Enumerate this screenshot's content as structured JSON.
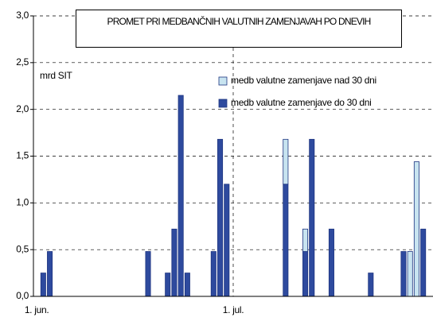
{
  "chart_data": {
    "type": "stacked_bar",
    "title": "PROMET PRI MEDBANČNIH VALUTNIH ZAMENJAVAH PO DNEVIH",
    "ylabel": "mrd SIT",
    "categories": [
      "1. jun.",
      null,
      null,
      null,
      null,
      null,
      null,
      null,
      null,
      null,
      null,
      null,
      null,
      null,
      null,
      null,
      null,
      null,
      null,
      null,
      null,
      null,
      null,
      null,
      null,
      null,
      null,
      null,
      null,
      null,
      "1. jul.",
      null,
      null,
      null,
      null,
      null,
      null,
      null,
      null,
      null,
      null,
      null,
      null,
      null,
      null,
      null,
      null,
      null,
      null,
      null,
      null,
      null,
      null,
      null,
      null,
      null,
      null,
      null,
      null,
      null,
      null
    ],
    "series": [
      {
        "name": "medb valutne zamenjave do 30 dni",
        "color": "#2e4a9e",
        "values": [
          null,
          0.25,
          0.48,
          null,
          null,
          null,
          null,
          null,
          null,
          null,
          null,
          null,
          null,
          null,
          null,
          null,
          null,
          0.48,
          null,
          null,
          0.25,
          0.72,
          2.15,
          0.25,
          null,
          null,
          null,
          0.48,
          1.68,
          1.2,
          null,
          null,
          null,
          null,
          null,
          null,
          null,
          null,
          1.2,
          null,
          null,
          0.48,
          1.68,
          null,
          null,
          0.72,
          null,
          null,
          null,
          null,
          null,
          0.25,
          null,
          null,
          null,
          null,
          0.48,
          null,
          null,
          0.72,
          null
        ]
      },
      {
        "name": "medb valutne zamenjave nad 30 dni",
        "color": "#c8e4f0",
        "values": [
          null,
          null,
          null,
          null,
          null,
          null,
          null,
          null,
          null,
          null,
          null,
          null,
          null,
          null,
          null,
          null,
          null,
          null,
          null,
          null,
          null,
          null,
          null,
          null,
          null,
          null,
          null,
          null,
          null,
          null,
          null,
          null,
          null,
          null,
          null,
          null,
          null,
          null,
          0.48,
          null,
          null,
          0.24,
          null,
          null,
          null,
          null,
          null,
          null,
          null,
          null,
          null,
          null,
          null,
          null,
          null,
          null,
          null,
          0.48,
          1.44,
          null,
          null
        ]
      }
    ],
    "ylim": [
      0,
      3
    ],
    "yticks": [
      {
        "value": 0,
        "label": "0,0"
      },
      {
        "value": 0.5,
        "label": "0,5"
      },
      {
        "value": 1,
        "label": "1,0"
      },
      {
        "value": 1.5,
        "label": "1,5"
      },
      {
        "value": 2,
        "label": "2,0"
      },
      {
        "value": 2.5,
        "label": "2,5"
      },
      {
        "value": 3,
        "label": "3,0"
      }
    ],
    "grid": true
  }
}
